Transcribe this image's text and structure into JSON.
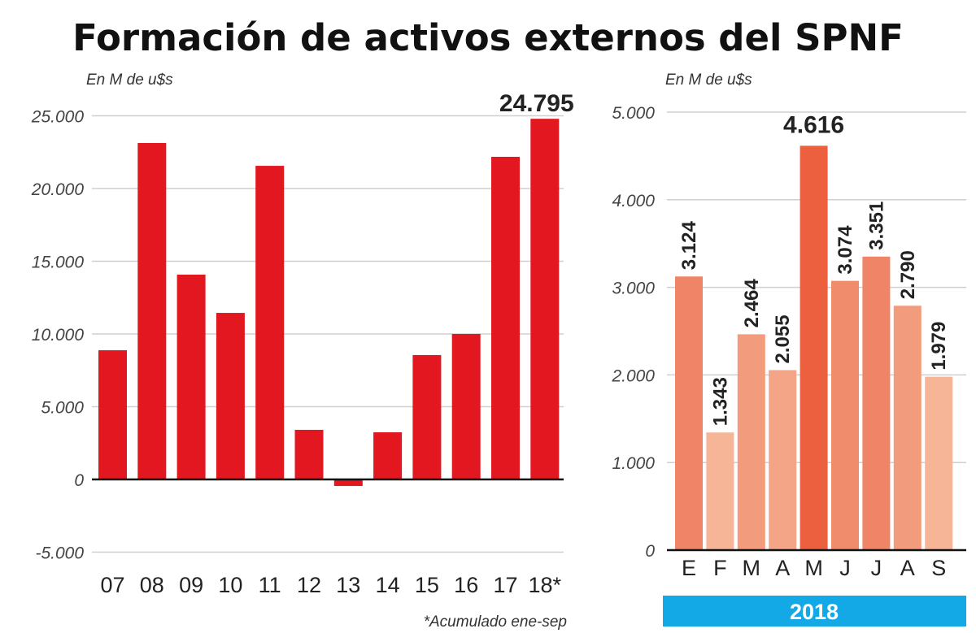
{
  "title": "Formación de activos externos del SPNF",
  "chart_data": [
    {
      "type": "bar",
      "unit_label": "En M de u$s",
      "categories": [
        "07",
        "08",
        "09",
        "10",
        "11",
        "12",
        "13",
        "14",
        "15",
        "16",
        "17",
        "18*"
      ],
      "values": [
        8880,
        23130,
        14080,
        11450,
        21560,
        3410,
        -450,
        3240,
        8550,
        10000,
        22180,
        24795
      ],
      "data_labels": {
        "18*": "24.795"
      },
      "yticks": [
        "-5.000",
        "0",
        "5.000",
        "10.000",
        "15.000",
        "20.000",
        "25.000"
      ],
      "ytick_values": [
        -5000,
        0,
        5000,
        10000,
        15000,
        20000,
        25000
      ],
      "ylim": [
        -5000,
        25000
      ],
      "grid": true,
      "bar_color": "#e3171f",
      "footnote": "*Acumulado ene-sep"
    },
    {
      "type": "bar",
      "unit_label": "En M de u$s",
      "categories": [
        "E",
        "F",
        "M",
        "A",
        "M",
        "J",
        "J",
        "A",
        "S"
      ],
      "values": [
        3124,
        1343,
        2464,
        2055,
        4616,
        3074,
        3351,
        2790,
        1979
      ],
      "value_labels": [
        "3.124",
        "1.343",
        "2.464",
        "2.055",
        "4.616",
        "3.074",
        "3.351",
        "2.790",
        "1.979"
      ],
      "bar_colors": [
        "#ef8566",
        "#f6b596",
        "#f29c7d",
        "#f4a587",
        "#ec5f3f",
        "#f08b6b",
        "#ef8566",
        "#f29c7d",
        "#f6b596"
      ],
      "yticks": [
        "0",
        "1.000",
        "2.000",
        "3.000",
        "4.000",
        "5.000"
      ],
      "ytick_values": [
        0,
        1000,
        2000,
        3000,
        4000,
        5000
      ],
      "ylim": [
        0,
        5000
      ],
      "grid": true,
      "year_label": "2018",
      "year_color": "#13a9e6"
    }
  ]
}
